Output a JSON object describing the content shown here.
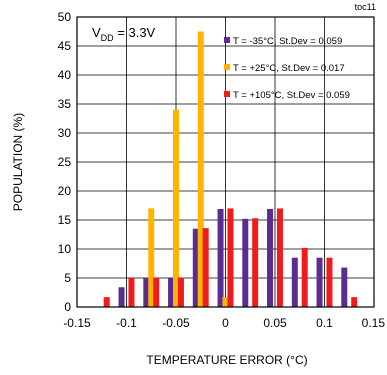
{
  "chart_data": {
    "type": "bar",
    "code": "toc11",
    "annotation": {
      "main": "V",
      "sub": "DD",
      "rest": " = 3.3V"
    },
    "xlabel": "TEMPERATURE ERROR (°C)",
    "ylabel": "POPULATION (%)",
    "xlim": [
      -0.15,
      0.15
    ],
    "ylim": [
      0,
      50
    ],
    "xticks": [
      "-0.15",
      "-0.1",
      "-0.05",
      "0",
      "0.05",
      "0.1",
      "0.15"
    ],
    "yticks": [
      "0",
      "5",
      "10",
      "15",
      "20",
      "25",
      "30",
      "35",
      "40",
      "45",
      "50"
    ],
    "grid": true,
    "legend_position": "top-right",
    "series": [
      {
        "name": "T = -35°C, St.Dev = 0.059",
        "color": "#5b2d91",
        "points": [
          {
            "x": -0.105,
            "y": 3.4
          },
          {
            "x": -0.08,
            "y": 5.1
          },
          {
            "x": -0.055,
            "y": 5.1
          },
          {
            "x": -0.03,
            "y": 13.5
          },
          {
            "x": -0.005,
            "y": 16.9
          },
          {
            "x": 0.02,
            "y": 15.2
          },
          {
            "x": 0.045,
            "y": 16.9
          },
          {
            "x": 0.07,
            "y": 8.5
          },
          {
            "x": 0.095,
            "y": 8.5
          },
          {
            "x": 0.12,
            "y": 6.8
          }
        ]
      },
      {
        "name": "T = +25°C, St.Dev = 0.017",
        "color": "#ffb400",
        "points": [
          {
            "x": -0.075,
            "y": 17.0
          },
          {
            "x": -0.05,
            "y": 34.0
          },
          {
            "x": -0.025,
            "y": 47.5
          },
          {
            "x": 0.0,
            "y": 1.7
          }
        ]
      },
      {
        "name": "T = +105°C, St.Dev = 0.059",
        "color": "#ee1c1c",
        "points": [
          {
            "x": -0.12,
            "y": 1.7
          },
          {
            "x": -0.095,
            "y": 5.1
          },
          {
            "x": -0.07,
            "y": 5.1
          },
          {
            "x": -0.045,
            "y": 5.1
          },
          {
            "x": -0.02,
            "y": 13.6
          },
          {
            "x": 0.005,
            "y": 17.0
          },
          {
            "x": 0.03,
            "y": 15.3
          },
          {
            "x": 0.055,
            "y": 17.0
          },
          {
            "x": 0.08,
            "y": 10.2
          },
          {
            "x": 0.105,
            "y": 8.5
          },
          {
            "x": 0.13,
            "y": 1.7
          }
        ]
      }
    ]
  }
}
